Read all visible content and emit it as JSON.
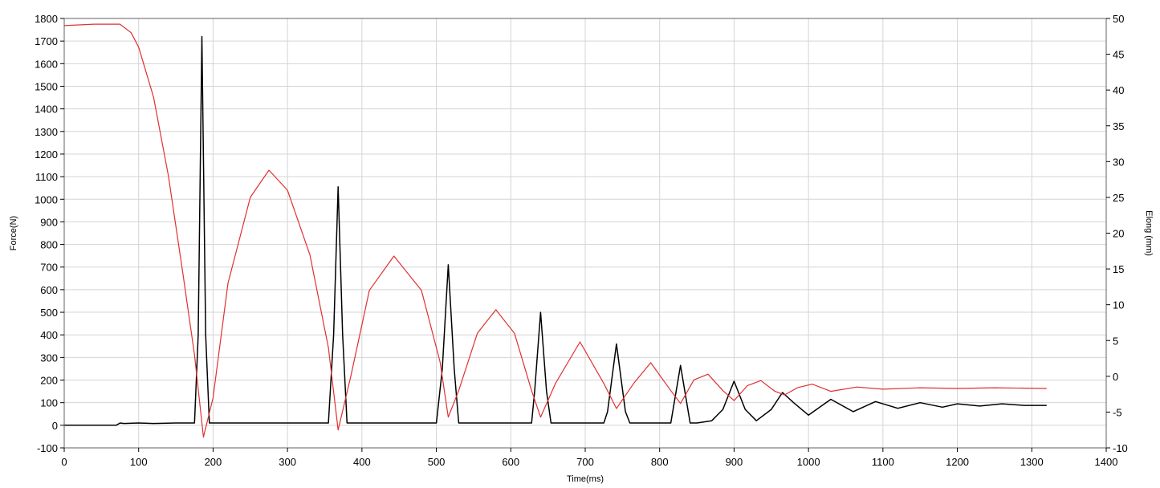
{
  "chart_data": {
    "type": "line",
    "title": "",
    "xlabel": "Time(ms)",
    "ylabel": "Force(N)",
    "y2label": "Elong (mm)",
    "xlim": [
      0,
      1400
    ],
    "ylim": [
      -100,
      1800
    ],
    "y2lim": [
      -10,
      50
    ],
    "grid": true,
    "x_ticks": [
      0,
      100,
      200,
      300,
      400,
      500,
      600,
      700,
      800,
      900,
      1000,
      1100,
      1200,
      1300,
      1400
    ],
    "y_ticks": [
      -100,
      0,
      100,
      200,
      300,
      400,
      500,
      600,
      700,
      800,
      900,
      1000,
      1100,
      1200,
      1300,
      1400,
      1500,
      1600,
      1700,
      1800
    ],
    "y2_ticks": [
      -10,
      -5,
      0,
      5,
      10,
      15,
      20,
      25,
      30,
      35,
      40,
      45,
      50
    ],
    "series": [
      {
        "color": "#000000",
        "axis": "left",
        "x": [
          0,
          70,
          75,
          80,
          100,
          120,
          150,
          175,
          180,
          185,
          190,
          195,
          200,
          250,
          300,
          355,
          362,
          368,
          374,
          380,
          400,
          450,
          500,
          508,
          516,
          524,
          530,
          550,
          600,
          628,
          632,
          640,
          648,
          654,
          680,
          725,
          730,
          742,
          754,
          760,
          800,
          815,
          828,
          841,
          850,
          870,
          885,
          900,
          915,
          930,
          950,
          965,
          980,
          1000,
          1030,
          1060,
          1090,
          1120,
          1150,
          1180,
          1200,
          1230,
          1260,
          1290,
          1320
        ],
        "y": [
          0,
          0,
          10,
          8,
          10,
          8,
          10,
          10,
          400,
          1720,
          400,
          10,
          10,
          10,
          10,
          10,
          400,
          1055,
          400,
          10,
          10,
          10,
          10,
          250,
          710,
          250,
          10,
          10,
          10,
          10,
          150,
          500,
          150,
          10,
          10,
          10,
          60,
          360,
          60,
          10,
          10,
          10,
          265,
          10,
          10,
          20,
          70,
          195,
          70,
          20,
          70,
          145,
          100,
          45,
          115,
          60,
          105,
          75,
          100,
          80,
          95,
          85,
          95,
          88,
          88
        ]
      },
      {
        "color": "#e03030",
        "axis": "right",
        "x": [
          0,
          40,
          75,
          90,
          100,
          120,
          140,
          160,
          175,
          187,
          200,
          220,
          250,
          275,
          300,
          330,
          355,
          368,
          385,
          410,
          443,
          480,
          505,
          516,
          530,
          555,
          580,
          605,
          628,
          640,
          660,
          693,
          725,
          742,
          765,
          788,
          815,
          828,
          846,
          865,
          885,
          900,
          918,
          936,
          955,
          968,
          985,
          1005,
          1030,
          1065,
          1100,
          1150,
          1200,
          1250,
          1320
        ],
        "y": [
          49,
          49.2,
          49.2,
          48,
          46,
          39,
          28,
          14,
          3,
          -8.5,
          -3,
          13,
          25,
          28.8,
          26,
          17,
          4,
          -7.5,
          0,
          12,
          16.8,
          12,
          2,
          -5.7,
          -2,
          6,
          9.3,
          6,
          -2,
          -5.7,
          -1,
          4.8,
          -1,
          -4.5,
          -1,
          1.9,
          -2,
          -3.8,
          -0.5,
          0.3,
          -2,
          -3.4,
          -1.3,
          -0.6,
          -2.1,
          -2.6,
          -1.6,
          -1.1,
          -2.1,
          -1.5,
          -1.8,
          -1.6,
          -1.7,
          -1.6,
          -1.7
        ]
      }
    ]
  }
}
